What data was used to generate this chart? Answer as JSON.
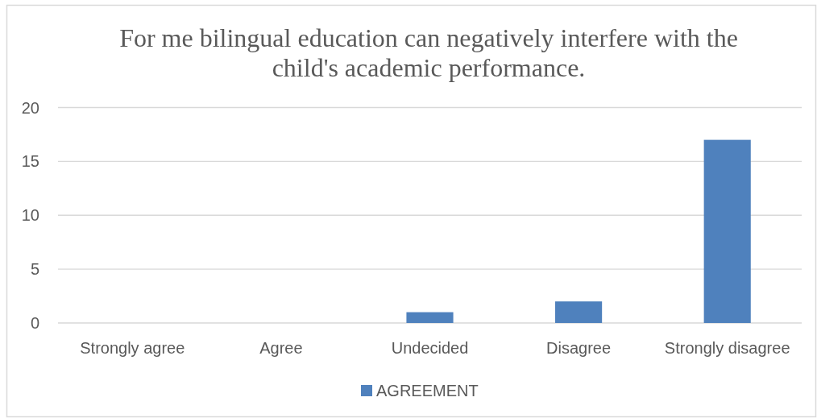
{
  "chart_data": {
    "type": "bar",
    "title": "For me bilingual education can negatively interfere with the child's academic performance.",
    "categories": [
      "Strongly agree",
      "Agree",
      "Undecided",
      "Disagree",
      "Strongly disagree"
    ],
    "series": [
      {
        "name": "AGREEMENT",
        "color": "#4f81bd",
        "values": [
          0,
          0,
          1,
          2,
          17
        ]
      }
    ],
    "ylim": [
      0,
      20
    ],
    "yticks": [
      0,
      5,
      10,
      15,
      20
    ],
    "grid": "y",
    "legend": "bottom"
  }
}
